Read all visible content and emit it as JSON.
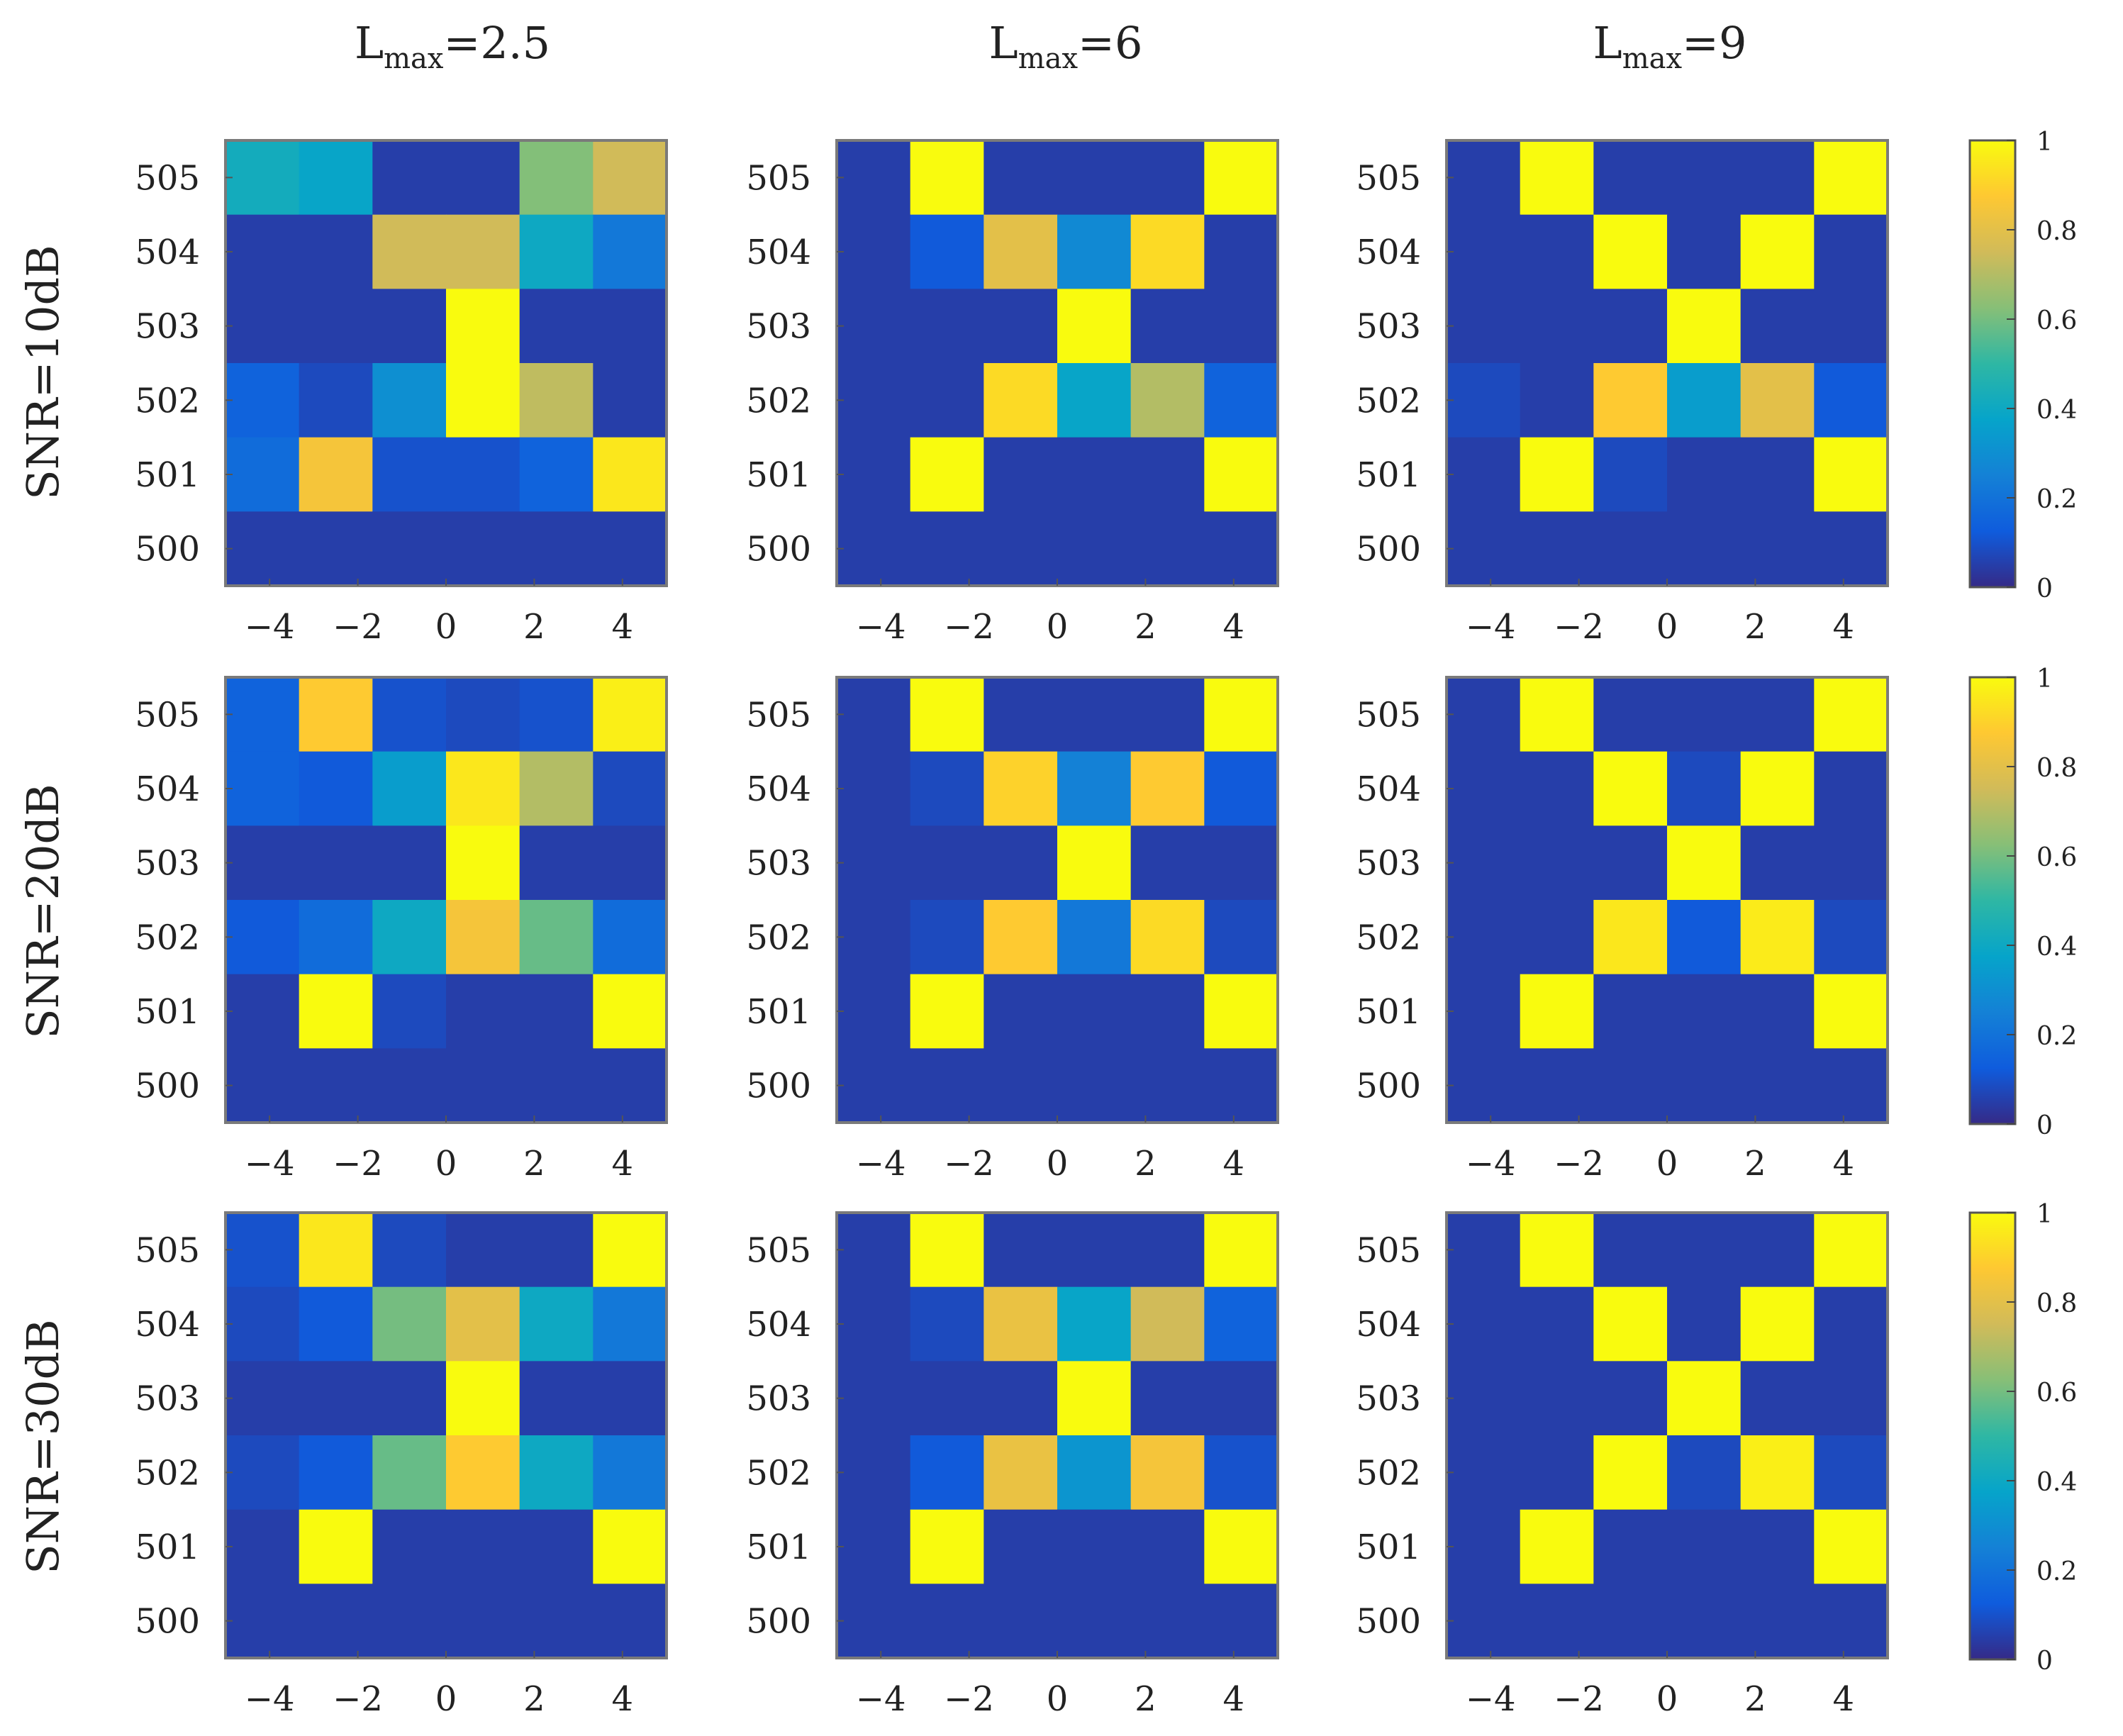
{
  "chart_data": {
    "type": "heatmap",
    "column_titles": [
      {
        "main": "L",
        "sub": "max",
        "value": "=2.5"
      },
      {
        "main": "L",
        "sub": "max",
        "value": "=6"
      },
      {
        "main": "L",
        "sub": "max",
        "value": "=9"
      }
    ],
    "row_titles": [
      "SNR=10dB",
      "SNR=20dB",
      "SNR=30dB"
    ],
    "x_tick_labels": [
      "-4",
      "-2",
      "0",
      "2",
      "4"
    ],
    "y_tick_labels": [
      "505",
      "504",
      "503",
      "502",
      "501",
      "500"
    ],
    "colorbar": {
      "range": [
        0,
        1
      ],
      "tick_labels": [
        "1",
        "0.8",
        "0.6",
        "0.4",
        "0.2",
        "0"
      ],
      "colormap": "parula"
    },
    "grid_note_rows_top_to_bottom": "505,504,503,502,501,500",
    "grid_note_columns_left_to_right": "6 cells spanning x from -5 to 5",
    "panels": [
      [
        {
          "values": [
            [
              0.42,
              0.38,
              0.05,
              0.05,
              0.62,
              0.75
            ],
            [
              0.05,
              0.05,
              0.75,
              0.75,
              0.4,
              0.22
            ],
            [
              0.05,
              0.05,
              0.05,
              1.0,
              0.05,
              0.05
            ],
            [
              0.15,
              0.08,
              0.3,
              1.0,
              0.72,
              0.05
            ],
            [
              0.18,
              0.85,
              0.1,
              0.1,
              0.15,
              0.95
            ],
            [
              0.05,
              0.05,
              0.05,
              0.05,
              0.05,
              0.05
            ]
          ]
        },
        {
          "values": [
            [
              0.05,
              1.0,
              0.05,
              0.05,
              0.05,
              1.0
            ],
            [
              0.05,
              0.12,
              0.8,
              0.28,
              0.92,
              0.05
            ],
            [
              0.05,
              0.05,
              0.05,
              1.0,
              0.05,
              0.05
            ],
            [
              0.05,
              0.05,
              0.92,
              0.38,
              0.7,
              0.15
            ],
            [
              0.05,
              1.0,
              0.05,
              0.05,
              0.05,
              1.0
            ],
            [
              0.05,
              0.05,
              0.05,
              0.05,
              0.05,
              0.05
            ]
          ]
        },
        {
          "values": [
            [
              0.05,
              1.0,
              0.05,
              0.05,
              0.05,
              1.0
            ],
            [
              0.05,
              0.05,
              1.0,
              0.05,
              1.0,
              0.05
            ],
            [
              0.05,
              0.05,
              0.05,
              1.0,
              0.05,
              0.05
            ],
            [
              0.08,
              0.05,
              0.88,
              0.35,
              0.8,
              0.12
            ],
            [
              0.05,
              1.0,
              0.08,
              0.05,
              0.05,
              1.0
            ],
            [
              0.05,
              0.05,
              0.05,
              0.05,
              0.05,
              0.05
            ]
          ]
        }
      ],
      [
        {
          "values": [
            [
              0.15,
              0.88,
              0.1,
              0.08,
              0.1,
              0.97
            ],
            [
              0.15,
              0.12,
              0.35,
              0.95,
              0.7,
              0.08
            ],
            [
              0.05,
              0.05,
              0.05,
              1.0,
              0.05,
              0.05
            ],
            [
              0.12,
              0.18,
              0.4,
              0.85,
              0.58,
              0.18
            ],
            [
              0.05,
              1.0,
              0.08,
              0.05,
              0.05,
              1.0
            ],
            [
              0.05,
              0.05,
              0.05,
              0.05,
              0.05,
              0.05
            ]
          ]
        },
        {
          "values": [
            [
              0.05,
              1.0,
              0.05,
              0.05,
              0.05,
              1.0
            ],
            [
              0.05,
              0.08,
              0.9,
              0.25,
              0.88,
              0.12
            ],
            [
              0.05,
              0.05,
              0.05,
              1.0,
              0.05,
              0.05
            ],
            [
              0.05,
              0.08,
              0.88,
              0.22,
              0.92,
              0.08
            ],
            [
              0.05,
              1.0,
              0.05,
              0.05,
              0.05,
              1.0
            ],
            [
              0.05,
              0.05,
              0.05,
              0.05,
              0.05,
              0.05
            ]
          ]
        },
        {
          "values": [
            [
              0.05,
              1.0,
              0.05,
              0.05,
              0.05,
              1.0
            ],
            [
              0.05,
              0.05,
              1.0,
              0.08,
              1.0,
              0.05
            ],
            [
              0.05,
              0.05,
              0.05,
              1.0,
              0.05,
              0.05
            ],
            [
              0.05,
              0.05,
              0.95,
              0.12,
              0.96,
              0.08
            ],
            [
              0.05,
              1.0,
              0.05,
              0.05,
              0.05,
              1.0
            ],
            [
              0.05,
              0.05,
              0.05,
              0.05,
              0.05,
              0.05
            ]
          ]
        }
      ],
      [
        {
          "values": [
            [
              0.1,
              0.95,
              0.08,
              0.05,
              0.05,
              1.0
            ],
            [
              0.08,
              0.12,
              0.6,
              0.8,
              0.4,
              0.22
            ],
            [
              0.05,
              0.05,
              0.05,
              1.0,
              0.05,
              0.05
            ],
            [
              0.08,
              0.12,
              0.58,
              0.88,
              0.4,
              0.22
            ],
            [
              0.05,
              1.0,
              0.05,
              0.05,
              0.05,
              1.0
            ],
            [
              0.05,
              0.05,
              0.05,
              0.05,
              0.05,
              0.05
            ]
          ]
        },
        {
          "values": [
            [
              0.05,
              1.0,
              0.05,
              0.05,
              0.05,
              1.0
            ],
            [
              0.05,
              0.08,
              0.82,
              0.38,
              0.75,
              0.15
            ],
            [
              0.05,
              0.05,
              0.05,
              1.0,
              0.05,
              0.05
            ],
            [
              0.05,
              0.12,
              0.82,
              0.32,
              0.85,
              0.1
            ],
            [
              0.05,
              1.0,
              0.05,
              0.05,
              0.05,
              1.0
            ],
            [
              0.05,
              0.05,
              0.05,
              0.05,
              0.05,
              0.05
            ]
          ]
        },
        {
          "values": [
            [
              0.05,
              1.0,
              0.05,
              0.05,
              0.05,
              1.0
            ],
            [
              0.05,
              0.05,
              1.0,
              0.05,
              1.0,
              0.05
            ],
            [
              0.05,
              0.05,
              0.05,
              1.0,
              0.05,
              0.05
            ],
            [
              0.05,
              0.05,
              1.0,
              0.08,
              0.97,
              0.08
            ],
            [
              0.05,
              1.0,
              0.05,
              0.05,
              0.05,
              1.0
            ],
            [
              0.05,
              0.05,
              0.05,
              0.05,
              0.05,
              0.05
            ]
          ]
        }
      ]
    ]
  }
}
